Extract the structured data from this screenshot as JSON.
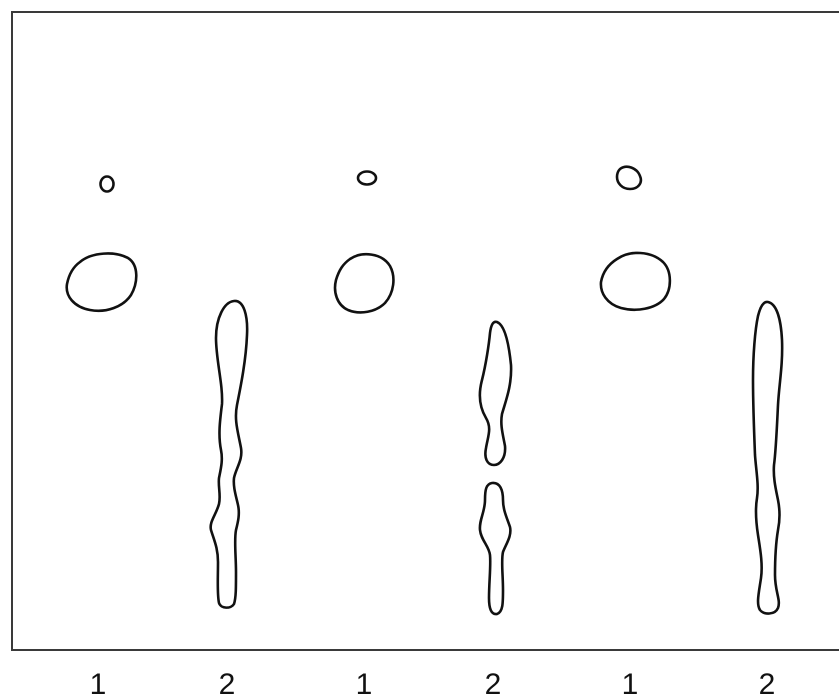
{
  "lane_labels": [
    "1",
    "2",
    "1",
    "2",
    "1",
    "2"
  ],
  "colors": {
    "outline": "#111111",
    "frame": "#3a3a3a",
    "background": "#ffffff"
  }
}
